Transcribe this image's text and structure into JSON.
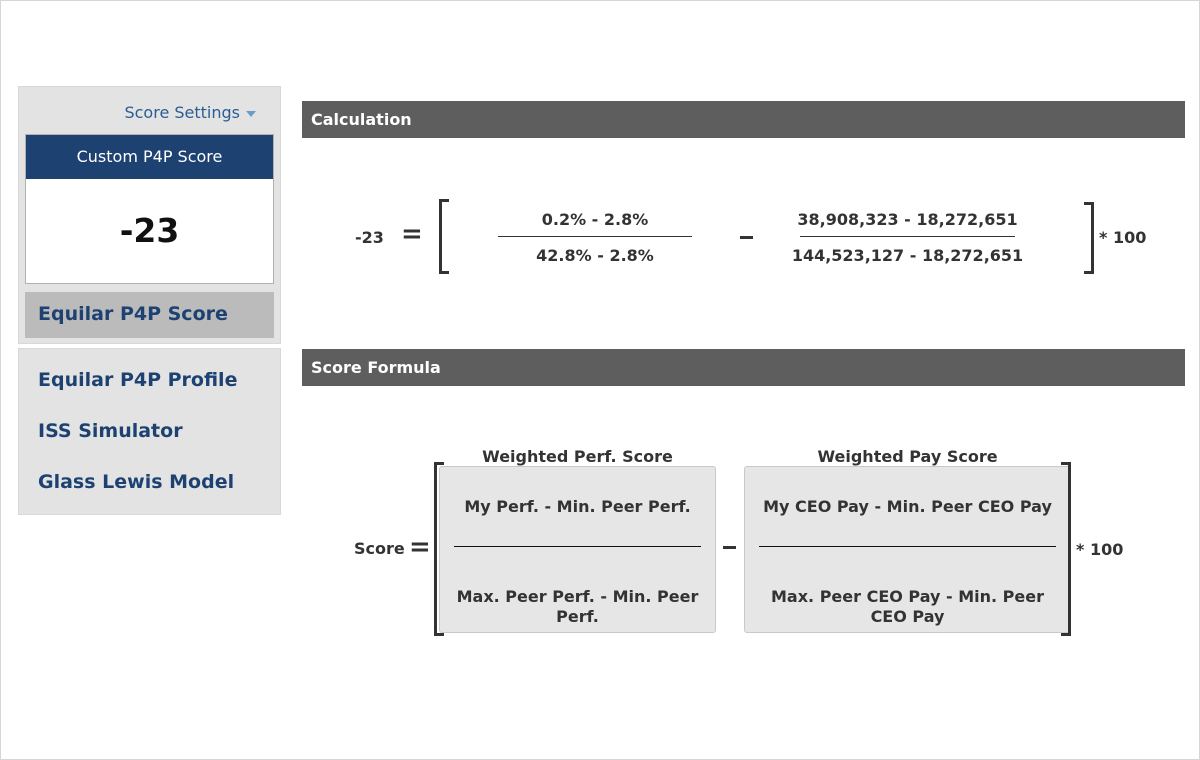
{
  "sidebar": {
    "settings_label": "Score Settings",
    "score_card": {
      "title": "Custom P4P Score",
      "value": "-23"
    },
    "equilar_score_label": "Equilar P4P Score",
    "nav": [
      {
        "label": "Equilar P4P Profile"
      },
      {
        "label": "ISS Simulator"
      },
      {
        "label": "Glass Lewis Model"
      }
    ]
  },
  "calculation": {
    "header": "Calculation",
    "result": "-23",
    "equals": "=",
    "perf_numerator": "0.2% - 2.8%",
    "perf_denominator": "42.8% - 2.8%",
    "pay_numerator": "38,908,323 - 18,272,651",
    "pay_denominator": "144,523,127 - 18,272,651",
    "multiplier": "* 100"
  },
  "formula": {
    "header": "Score Formula",
    "score_label": "Score",
    "equals": "=",
    "perf_title": "Weighted Perf. Score",
    "perf_numerator": "My Perf. - Min. Peer Perf.",
    "perf_denominator": "Max. Peer Perf. - Min. Peer Perf.",
    "pay_title": "Weighted Pay Score",
    "pay_numerator": "My CEO Pay - Min. Peer CEO Pay",
    "pay_denominator": "Max. Peer CEO Pay - Min. Peer CEO Pay",
    "multiplier": "* 100"
  },
  "colors": {
    "navy": "#1d4272",
    "link_blue": "#2a5d94",
    "header_gray": "#5e5e5e",
    "sidebar_bg": "#e3e3e3"
  }
}
